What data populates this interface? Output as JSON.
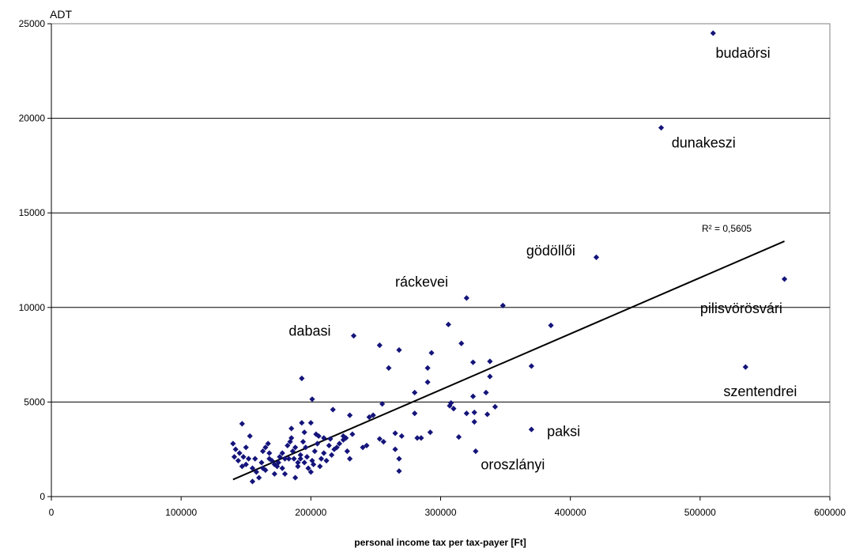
{
  "chart_data": {
    "type": "scatter",
    "ylabel": "ADT",
    "xlabel": "personal income tax per tax-payer [Ft]",
    "xlim": [
      0,
      600000
    ],
    "ylim": [
      0,
      25000
    ],
    "xticks": [
      "0",
      "100000",
      "200000",
      "300000",
      "400000",
      "500000",
      "600000"
    ],
    "yticks": [
      "0",
      "5000",
      "10000",
      "15000",
      "20000",
      "25000"
    ],
    "grid": "horizontal",
    "marker_color": "#14147a",
    "trendline": {
      "x": [
        140000,
        565000
      ],
      "y": [
        900,
        13500
      ],
      "r2_label": "R² = 0,5605"
    },
    "annotations": [
      {
        "text": "budaörsi",
        "x": 512000,
        "y": 23200
      },
      {
        "text": "dunakeszi",
        "x": 478000,
        "y": 18450
      },
      {
        "text": "gödöllői",
        "x": 366000,
        "y": 12750
      },
      {
        "text": "ráckevei",
        "x": 265000,
        "y": 11100
      },
      {
        "text": "dabasi",
        "x": 183000,
        "y": 8500
      },
      {
        "text": "pilisvörösvári",
        "x": 500000,
        "y": 9700
      },
      {
        "text": "szentendrei",
        "x": 518000,
        "y": 5300
      },
      {
        "text": "paksi",
        "x": 382000,
        "y": 3200
      },
      {
        "text": "oroszlányi",
        "x": 331000,
        "y": 1450
      }
    ],
    "points": [
      [
        510000,
        24500
      ],
      [
        470000,
        19500
      ],
      [
        420000,
        12650
      ],
      [
        565000,
        11500
      ],
      [
        535000,
        6850
      ],
      [
        320000,
        10500
      ],
      [
        348000,
        10100
      ],
      [
        385000,
        9050
      ],
      [
        370000,
        6900
      ],
      [
        370000,
        3550
      ],
      [
        233000,
        8500
      ],
      [
        306000,
        9100
      ],
      [
        316000,
        8100
      ],
      [
        253000,
        8000
      ],
      [
        268000,
        7750
      ],
      [
        293000,
        7600
      ],
      [
        325000,
        7100
      ],
      [
        338000,
        7150
      ],
      [
        260000,
        6800
      ],
      [
        290000,
        6800
      ],
      [
        338000,
        6350
      ],
      [
        290000,
        6050
      ],
      [
        280000,
        5500
      ],
      [
        335000,
        5500
      ],
      [
        325000,
        5300
      ],
      [
        308000,
        4950
      ],
      [
        307000,
        4800
      ],
      [
        310000,
        4650
      ],
      [
        342000,
        4750
      ],
      [
        320000,
        4400
      ],
      [
        326000,
        4450
      ],
      [
        336000,
        4350
      ],
      [
        326000,
        3950
      ],
      [
        280000,
        4400
      ],
      [
        255000,
        4900
      ],
      [
        230000,
        4300
      ],
      [
        245000,
        4200
      ],
      [
        248000,
        4300
      ],
      [
        292000,
        3400
      ],
      [
        265000,
        3350
      ],
      [
        270000,
        3200
      ],
      [
        282000,
        3100
      ],
      [
        285000,
        3100
      ],
      [
        253000,
        3050
      ],
      [
        314000,
        3150
      ],
      [
        265000,
        2500
      ],
      [
        268000,
        2000
      ],
      [
        268000,
        1350
      ],
      [
        256000,
        2900
      ],
      [
        240000,
        2600
      ],
      [
        243000,
        2700
      ],
      [
        230000,
        2000
      ],
      [
        327000,
        2400
      ],
      [
        193000,
        6250
      ],
      [
        201000,
        5150
      ],
      [
        217000,
        4600
      ],
      [
        147000,
        3850
      ],
      [
        193000,
        3900
      ],
      [
        200000,
        3900
      ],
      [
        185000,
        3600
      ],
      [
        204000,
        3300
      ],
      [
        210000,
        3100
      ],
      [
        215000,
        3050
      ],
      [
        225000,
        3200
      ],
      [
        232000,
        3300
      ],
      [
        140000,
        2800
      ],
      [
        142000,
        2500
      ],
      [
        145000,
        2300
      ],
      [
        148000,
        2100
      ],
      [
        150000,
        2600
      ],
      [
        152000,
        2000
      ],
      [
        153000,
        3200
      ],
      [
        155000,
        1500
      ],
      [
        158000,
        1300
      ],
      [
        160000,
        1000
      ],
      [
        162000,
        1800
      ],
      [
        163000,
        2400
      ],
      [
        165000,
        2600
      ],
      [
        167000,
        2800
      ],
      [
        168000,
        2000
      ],
      [
        170000,
        1900
      ],
      [
        172000,
        1700
      ],
      [
        174000,
        1600
      ],
      [
        176000,
        2100
      ],
      [
        178000,
        2300
      ],
      [
        180000,
        1200
      ],
      [
        182000,
        2700
      ],
      [
        184000,
        2900
      ],
      [
        185000,
        3100
      ],
      [
        186000,
        2400
      ],
      [
        187000,
        2000
      ],
      [
        188000,
        1000
      ],
      [
        190000,
        1800
      ],
      [
        192000,
        2200
      ],
      [
        194000,
        2900
      ],
      [
        195000,
        3400
      ],
      [
        196000,
        2600
      ],
      [
        197000,
        2100
      ],
      [
        198000,
        1500
      ],
      [
        200000,
        1300
      ],
      [
        201000,
        1900
      ],
      [
        203000,
        2400
      ],
      [
        205000,
        2800
      ],
      [
        206000,
        3200
      ],
      [
        208000,
        2000
      ],
      [
        210000,
        2300
      ],
      [
        212000,
        1900
      ],
      [
        214000,
        2700
      ],
      [
        216000,
        2200
      ],
      [
        218000,
        2500
      ],
      [
        220000,
        2600
      ],
      [
        222000,
        2800
      ],
      [
        225000,
        3000
      ],
      [
        227000,
        3100
      ],
      [
        228000,
        2400
      ],
      [
        147000,
        1600
      ],
      [
        155000,
        800
      ],
      [
        165000,
        1400
      ],
      [
        172000,
        1200
      ],
      [
        178000,
        1500
      ],
      [
        183000,
        2000
      ],
      [
        190000,
        1600
      ],
      [
        195000,
        1800
      ],
      [
        202000,
        1700
      ],
      [
        207000,
        1600
      ],
      [
        141000,
        2100
      ],
      [
        144000,
        1900
      ],
      [
        150000,
        1700
      ],
      [
        157000,
        2000
      ],
      [
        163000,
        1500
      ],
      [
        168000,
        2300
      ],
      [
        175000,
        1800
      ],
      [
        180000,
        2000
      ],
      [
        188000,
        2600
      ],
      [
        192000,
        2000
      ]
    ]
  }
}
